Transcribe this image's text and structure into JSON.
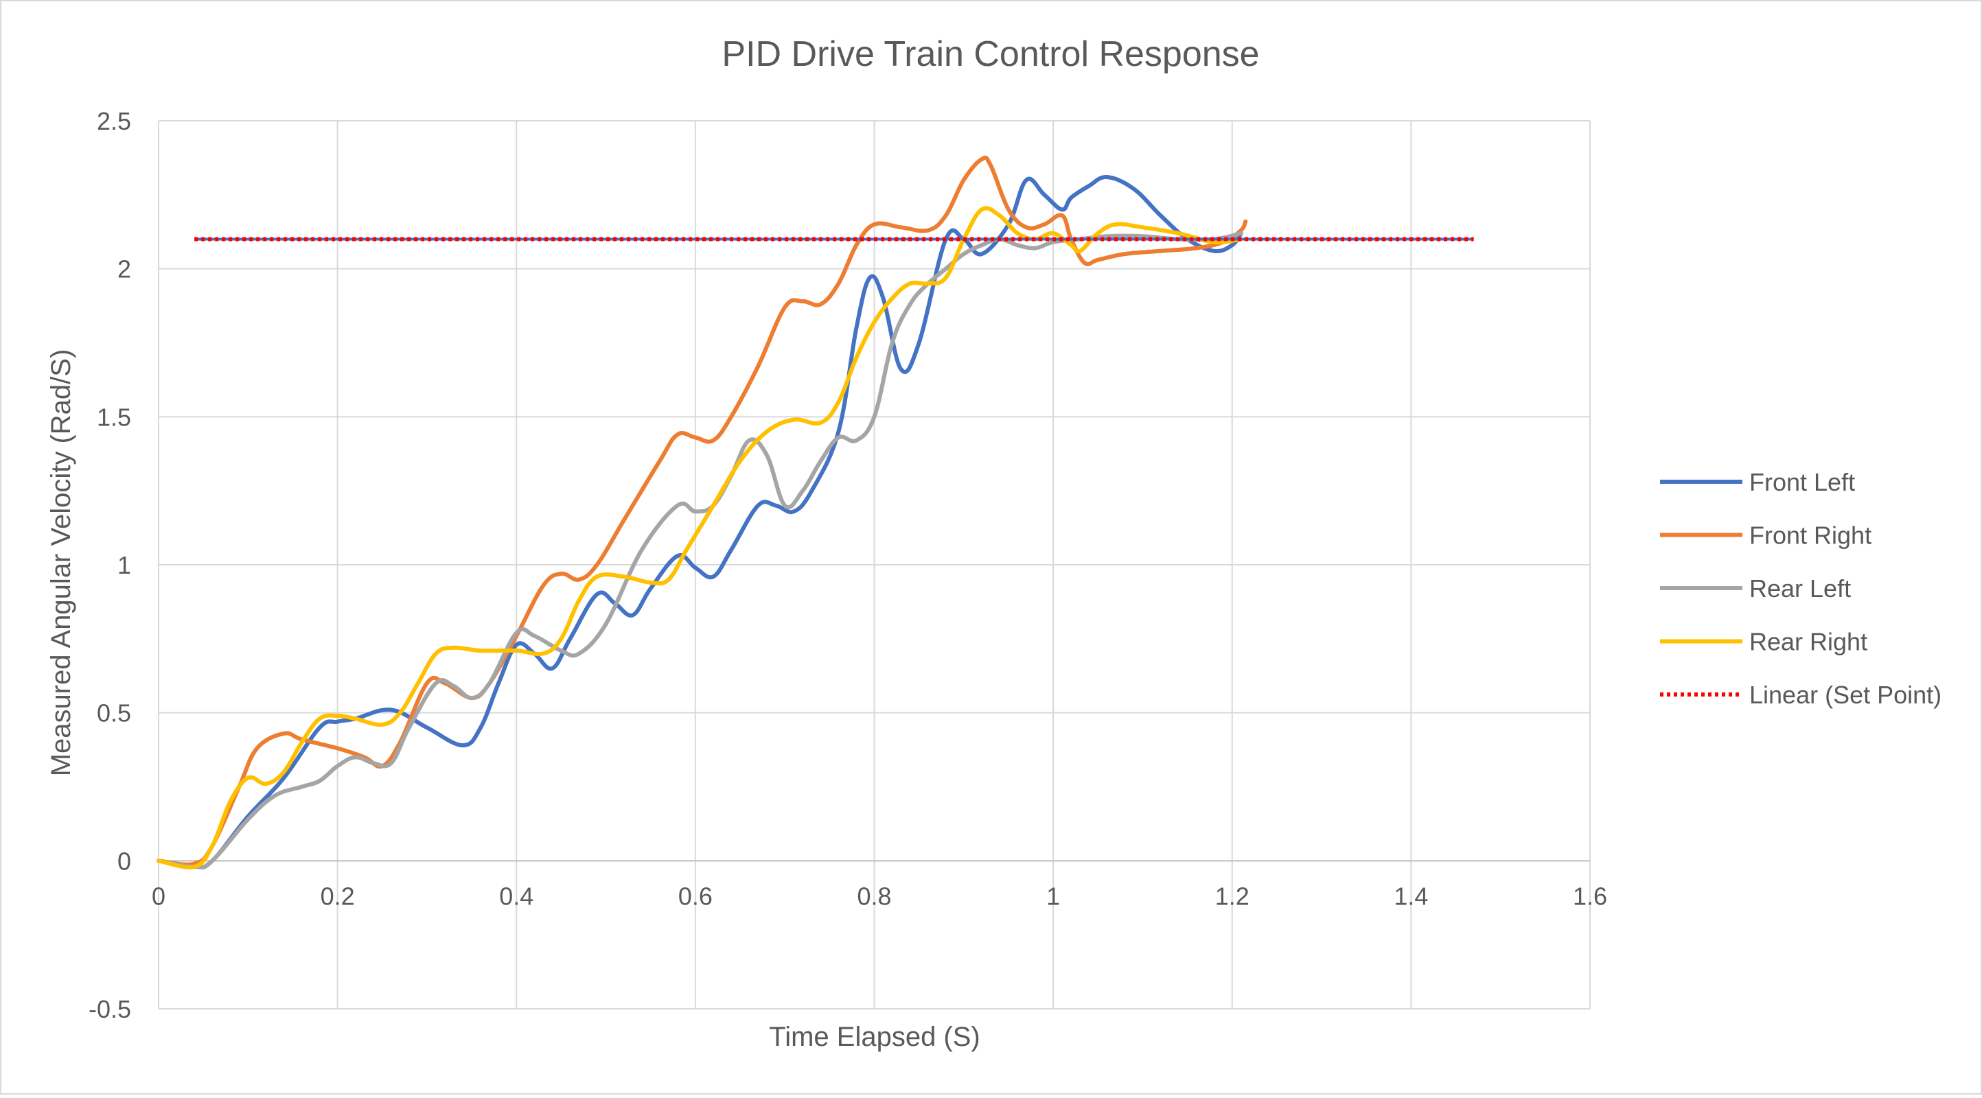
{
  "chart_data": {
    "type": "line",
    "title": "PID Drive Train Control Response",
    "xlabel": "Time Elapsed (S)",
    "ylabel": "Measured Angular Velocity (Rad/S)",
    "xlim": [
      0,
      1.6
    ],
    "ylim": [
      -0.5,
      2.5
    ],
    "xticks": [
      0,
      0.2,
      0.4,
      0.6,
      0.8,
      1,
      1.2,
      1.4,
      1.6
    ],
    "xtick_labels": [
      "0",
      "0.2",
      "0.4",
      "0.6",
      "0.8",
      "1",
      "1.2",
      "1.4",
      "1.6"
    ],
    "yticks": [
      -0.5,
      0,
      0.5,
      1,
      1.5,
      2,
      2.5
    ],
    "ytick_labels": [
      "-0.5",
      "0",
      "0.5",
      "1",
      "1.5",
      "2",
      "2.5"
    ],
    "grid": true,
    "legend_position": "right",
    "series": [
      {
        "name": "Front Left",
        "color": "#4472C4",
        "style": "solid",
        "points": [
          [
            0.0,
            0.0
          ],
          [
            0.04,
            -0.02
          ],
          [
            0.06,
            0.0
          ],
          [
            0.1,
            0.15
          ],
          [
            0.14,
            0.28
          ],
          [
            0.18,
            0.45
          ],
          [
            0.2,
            0.47
          ],
          [
            0.22,
            0.48
          ],
          [
            0.26,
            0.51
          ],
          [
            0.3,
            0.45
          ],
          [
            0.34,
            0.39
          ],
          [
            0.36,
            0.45
          ],
          [
            0.38,
            0.6
          ],
          [
            0.4,
            0.73
          ],
          [
            0.42,
            0.7
          ],
          [
            0.44,
            0.65
          ],
          [
            0.46,
            0.75
          ],
          [
            0.49,
            0.9
          ],
          [
            0.51,
            0.87
          ],
          [
            0.53,
            0.83
          ],
          [
            0.55,
            0.92
          ],
          [
            0.58,
            1.03
          ],
          [
            0.6,
            0.99
          ],
          [
            0.62,
            0.96
          ],
          [
            0.64,
            1.05
          ],
          [
            0.67,
            1.2
          ],
          [
            0.69,
            1.2
          ],
          [
            0.71,
            1.18
          ],
          [
            0.73,
            1.25
          ],
          [
            0.76,
            1.45
          ],
          [
            0.78,
            1.8
          ],
          [
            0.795,
            1.97
          ],
          [
            0.81,
            1.9
          ],
          [
            0.83,
            1.66
          ],
          [
            0.85,
            1.75
          ],
          [
            0.88,
            2.1
          ],
          [
            0.9,
            2.1
          ],
          [
            0.92,
            2.05
          ],
          [
            0.95,
            2.15
          ],
          [
            0.97,
            2.3
          ],
          [
            0.99,
            2.25
          ],
          [
            1.01,
            2.2
          ],
          [
            1.02,
            2.24
          ],
          [
            1.04,
            2.28
          ],
          [
            1.06,
            2.31
          ],
          [
            1.09,
            2.27
          ],
          [
            1.12,
            2.18
          ],
          [
            1.15,
            2.1
          ],
          [
            1.18,
            2.06
          ],
          [
            1.2,
            2.08
          ],
          [
            1.21,
            2.12
          ]
        ]
      },
      {
        "name": "Front Right",
        "color": "#ED7D31",
        "style": "solid",
        "points": [
          [
            0.0,
            0.0
          ],
          [
            0.04,
            -0.01
          ],
          [
            0.06,
            0.05
          ],
          [
            0.09,
            0.25
          ],
          [
            0.11,
            0.38
          ],
          [
            0.14,
            0.43
          ],
          [
            0.16,
            0.41
          ],
          [
            0.2,
            0.38
          ],
          [
            0.23,
            0.35
          ],
          [
            0.25,
            0.32
          ],
          [
            0.27,
            0.4
          ],
          [
            0.3,
            0.6
          ],
          [
            0.32,
            0.6
          ],
          [
            0.35,
            0.55
          ],
          [
            0.37,
            0.6
          ],
          [
            0.4,
            0.76
          ],
          [
            0.43,
            0.93
          ],
          [
            0.45,
            0.97
          ],
          [
            0.47,
            0.95
          ],
          [
            0.49,
            1.0
          ],
          [
            0.52,
            1.15
          ],
          [
            0.56,
            1.35
          ],
          [
            0.58,
            1.44
          ],
          [
            0.6,
            1.43
          ],
          [
            0.62,
            1.42
          ],
          [
            0.64,
            1.5
          ],
          [
            0.67,
            1.67
          ],
          [
            0.7,
            1.87
          ],
          [
            0.72,
            1.89
          ],
          [
            0.74,
            1.88
          ],
          [
            0.76,
            1.95
          ],
          [
            0.78,
            2.08
          ],
          [
            0.8,
            2.15
          ],
          [
            0.83,
            2.14
          ],
          [
            0.86,
            2.13
          ],
          [
            0.88,
            2.18
          ],
          [
            0.9,
            2.3
          ],
          [
            0.92,
            2.37
          ],
          [
            0.93,
            2.35
          ],
          [
            0.95,
            2.2
          ],
          [
            0.97,
            2.14
          ],
          [
            0.99,
            2.15
          ],
          [
            1.01,
            2.18
          ],
          [
            1.02,
            2.1
          ],
          [
            1.035,
            2.02
          ],
          [
            1.05,
            2.03
          ],
          [
            1.08,
            2.05
          ],
          [
            1.12,
            2.06
          ],
          [
            1.16,
            2.07
          ],
          [
            1.19,
            2.09
          ],
          [
            1.21,
            2.13
          ],
          [
            1.215,
            2.16
          ]
        ]
      },
      {
        "name": "Rear Left",
        "color": "#A5A5A5",
        "style": "solid",
        "points": [
          [
            0.0,
            0.0
          ],
          [
            0.04,
            -0.02
          ],
          [
            0.06,
            0.0
          ],
          [
            0.1,
            0.14
          ],
          [
            0.13,
            0.22
          ],
          [
            0.16,
            0.25
          ],
          [
            0.18,
            0.27
          ],
          [
            0.2,
            0.32
          ],
          [
            0.22,
            0.35
          ],
          [
            0.24,
            0.33
          ],
          [
            0.26,
            0.33
          ],
          [
            0.28,
            0.45
          ],
          [
            0.31,
            0.6
          ],
          [
            0.33,
            0.59
          ],
          [
            0.35,
            0.55
          ],
          [
            0.37,
            0.6
          ],
          [
            0.4,
            0.77
          ],
          [
            0.42,
            0.76
          ],
          [
            0.45,
            0.71
          ],
          [
            0.47,
            0.7
          ],
          [
            0.5,
            0.8
          ],
          [
            0.54,
            1.05
          ],
          [
            0.58,
            1.2
          ],
          [
            0.6,
            1.18
          ],
          [
            0.62,
            1.2
          ],
          [
            0.64,
            1.3
          ],
          [
            0.66,
            1.42
          ],
          [
            0.68,
            1.37
          ],
          [
            0.7,
            1.2
          ],
          [
            0.72,
            1.25
          ],
          [
            0.74,
            1.35
          ],
          [
            0.76,
            1.43
          ],
          [
            0.78,
            1.42
          ],
          [
            0.8,
            1.5
          ],
          [
            0.82,
            1.75
          ],
          [
            0.84,
            1.88
          ],
          [
            0.86,
            1.95
          ],
          [
            0.88,
            2.0
          ],
          [
            0.9,
            2.05
          ],
          [
            0.92,
            2.08
          ],
          [
            0.94,
            2.1
          ],
          [
            0.96,
            2.08
          ],
          [
            0.98,
            2.07
          ],
          [
            1.0,
            2.09
          ],
          [
            1.03,
            2.1
          ],
          [
            1.06,
            2.11
          ],
          [
            1.1,
            2.11
          ],
          [
            1.14,
            2.1
          ],
          [
            1.18,
            2.1
          ],
          [
            1.21,
            2.12
          ]
        ]
      },
      {
        "name": "Rear Right",
        "color": "#FFC000",
        "style": "solid",
        "points": [
          [
            0.0,
            0.0
          ],
          [
            0.04,
            -0.02
          ],
          [
            0.06,
            0.05
          ],
          [
            0.08,
            0.2
          ],
          [
            0.1,
            0.28
          ],
          [
            0.12,
            0.26
          ],
          [
            0.14,
            0.3
          ],
          [
            0.16,
            0.4
          ],
          [
            0.18,
            0.48
          ],
          [
            0.2,
            0.49
          ],
          [
            0.22,
            0.48
          ],
          [
            0.25,
            0.46
          ],
          [
            0.27,
            0.5
          ],
          [
            0.29,
            0.6
          ],
          [
            0.31,
            0.7
          ],
          [
            0.33,
            0.72
          ],
          [
            0.36,
            0.71
          ],
          [
            0.4,
            0.71
          ],
          [
            0.43,
            0.7
          ],
          [
            0.45,
            0.75
          ],
          [
            0.47,
            0.88
          ],
          [
            0.49,
            0.96
          ],
          [
            0.52,
            0.96
          ],
          [
            0.55,
            0.94
          ],
          [
            0.57,
            0.95
          ],
          [
            0.59,
            1.05
          ],
          [
            0.62,
            1.2
          ],
          [
            0.65,
            1.35
          ],
          [
            0.68,
            1.45
          ],
          [
            0.71,
            1.49
          ],
          [
            0.74,
            1.48
          ],
          [
            0.76,
            1.55
          ],
          [
            0.78,
            1.7
          ],
          [
            0.8,
            1.82
          ],
          [
            0.82,
            1.9
          ],
          [
            0.84,
            1.95
          ],
          [
            0.86,
            1.95
          ],
          [
            0.88,
            1.97
          ],
          [
            0.9,
            2.1
          ],
          [
            0.92,
            2.2
          ],
          [
            0.94,
            2.18
          ],
          [
            0.96,
            2.12
          ],
          [
            0.98,
            2.1
          ],
          [
            1.0,
            2.12
          ],
          [
            1.02,
            2.08
          ],
          [
            1.03,
            2.06
          ],
          [
            1.05,
            2.12
          ],
          [
            1.07,
            2.15
          ],
          [
            1.1,
            2.14
          ],
          [
            1.14,
            2.12
          ],
          [
            1.18,
            2.09
          ],
          [
            1.21,
            2.1
          ]
        ]
      },
      {
        "name": "Linear (Set Point)",
        "color": "#FF0000",
        "style": "dotted",
        "points": [
          [
            0.04,
            2.1
          ],
          [
            1.47,
            2.1
          ]
        ]
      }
    ]
  }
}
